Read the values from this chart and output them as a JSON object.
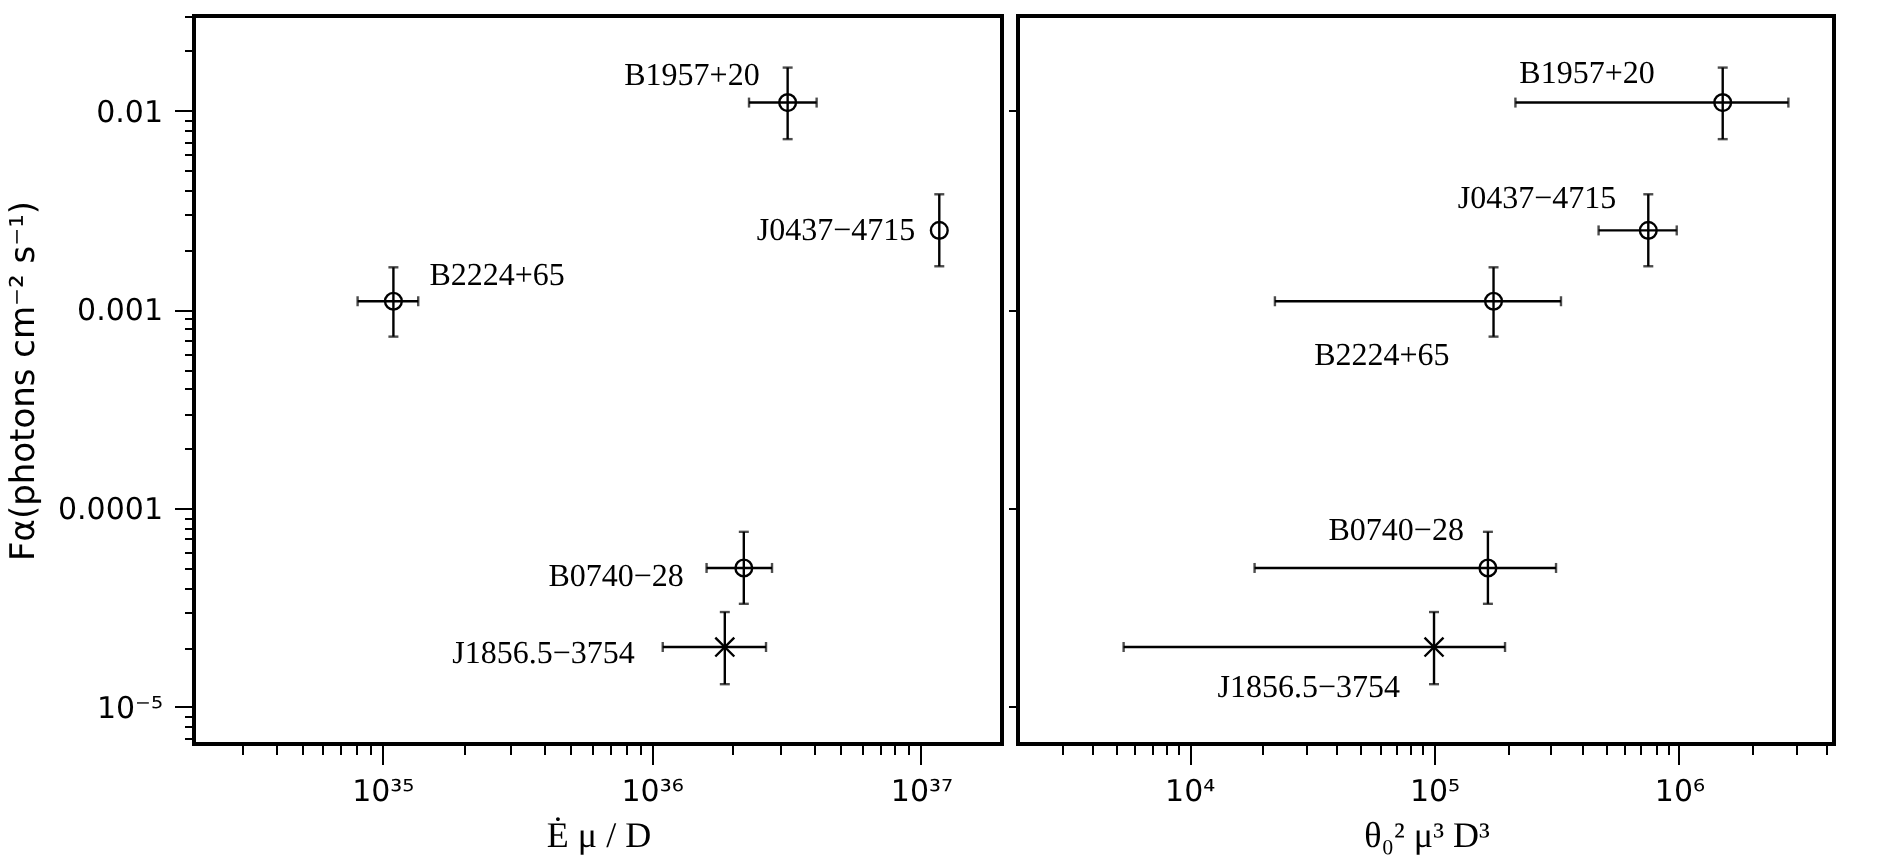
{
  "chart_data": [
    {
      "type": "scatter",
      "xlabel": "Ė μ / D",
      "ylabel": "Fα(photons cm⁻² s⁻¹)",
      "log": "xy",
      "grid": false,
      "legend": false,
      "marker": "circle",
      "xlim": [
        2e+34,
        2e+37
      ],
      "ylim": [
        6.5e-06,
        0.03
      ],
      "xticks": [
        {
          "value": 3e+34,
          "label": null
        },
        {
          "value": 4e+34,
          "label": null
        },
        {
          "value": 5e+34,
          "label": null
        },
        {
          "value": 6e+34,
          "label": null
        },
        {
          "value": 7e+34,
          "label": null
        },
        {
          "value": 8e+34,
          "label": null
        },
        {
          "value": 9e+34,
          "label": null
        },
        {
          "value": 1e+35,
          "label": "10³⁵"
        },
        {
          "value": 2e+35,
          "label": null
        },
        {
          "value": 3e+35,
          "label": null
        },
        {
          "value": 4e+35,
          "label": null
        },
        {
          "value": 5e+35,
          "label": null
        },
        {
          "value": 6e+35,
          "label": null
        },
        {
          "value": 7e+35,
          "label": null
        },
        {
          "value": 8e+35,
          "label": null
        },
        {
          "value": 9e+35,
          "label": null
        },
        {
          "value": 1e+36,
          "label": "10³⁶"
        },
        {
          "value": 2e+36,
          "label": null
        },
        {
          "value": 3e+36,
          "label": null
        },
        {
          "value": 4e+36,
          "label": null
        },
        {
          "value": 5e+36,
          "label": null
        },
        {
          "value": 6e+36,
          "label": null
        },
        {
          "value": 7e+36,
          "label": null
        },
        {
          "value": 8e+36,
          "label": null
        },
        {
          "value": 9e+36,
          "label": null
        },
        {
          "value": 1e+37,
          "label": "10³⁷"
        }
      ],
      "yticks": [
        {
          "value": 7e-06,
          "label": null
        },
        {
          "value": 8e-06,
          "label": null
        },
        {
          "value": 9e-06,
          "label": null
        },
        {
          "value": 1e-05,
          "label": "10⁻⁵"
        },
        {
          "value": 2e-05,
          "label": null
        },
        {
          "value": 3e-05,
          "label": null
        },
        {
          "value": 4e-05,
          "label": null
        },
        {
          "value": 5e-05,
          "label": null
        },
        {
          "value": 6e-05,
          "label": null
        },
        {
          "value": 7e-05,
          "label": null
        },
        {
          "value": 8e-05,
          "label": null
        },
        {
          "value": 9e-05,
          "label": null
        },
        0.0001,
        {
          "value": 0.0002,
          "label": null
        },
        {
          "value": 0.0003,
          "label": null
        },
        {
          "value": 0.0004,
          "label": null
        },
        {
          "value": 0.0005,
          "label": null
        },
        {
          "value": 0.0006,
          "label": null
        },
        {
          "value": 0.0007,
          "label": null
        },
        {
          "value": 0.0008,
          "label": null
        },
        {
          "value": 0.0009,
          "label": null
        },
        0.001,
        {
          "value": 0.002,
          "label": null
        },
        {
          "value": 0.003,
          "label": null
        },
        {
          "value": 0.004,
          "label": null
        },
        {
          "value": 0.005,
          "label": null
        },
        {
          "value": 0.006,
          "label": null
        },
        {
          "value": 0.007,
          "label": null
        },
        {
          "value": 0.008,
          "label": null
        },
        {
          "value": 0.009,
          "label": null
        },
        0.01,
        {
          "value": 0.02,
          "label": null
        },
        {
          "value": 0.03,
          "label": null
        }
      ],
      "series": [
        {
          "name": "B1957+20",
          "color": "#000000",
          "x": [
            3.2e+36
          ],
          "values": [
            0.011
          ],
          "errors": [
            [
              0.0072,
              0.0165
            ]
          ],
          "xerrors": [
            [
              2.3e+36,
              4.1e+36
            ]
          ]
        },
        {
          "name": "J0437−4715",
          "color": "#000000",
          "x": [
            1.17e+37
          ],
          "values": [
            0.0025
          ],
          "errors": [
            [
              0.00165,
              0.0038
            ]
          ]
        },
        {
          "name": "B2224+65",
          "color": "#000000",
          "x": [
            1.1e+35
          ],
          "values": [
            0.0011
          ],
          "errors": [
            [
              0.00073,
              0.00163
            ]
          ],
          "xerrors": [
            [
              8.1e+34,
              1.36e+35
            ]
          ]
        },
        {
          "name": "B0740−28",
          "color": "#000000",
          "x": [
            2.2e+36
          ],
          "values": [
            5e-05
          ],
          "errors": [
            [
              3.3e-05,
              7.6e-05
            ]
          ],
          "xerrors": [
            [
              1.6e+36,
              2.8e+36
            ]
          ]
        },
        {
          "name": "J1856.5−3754",
          "color": "#000000",
          "marker": "cross",
          "x": [
            1.87e+36
          ],
          "values": [
            2e-05
          ],
          "errors": [
            [
              1.3e-05,
              3e-05
            ]
          ],
          "xerrors": [
            [
              1.1e+36,
              2.66e+36
            ]
          ]
        }
      ]
    },
    {
      "type": "scatter",
      "xlabel": "θ₀² μ³ D³",
      "log": "xy",
      "grid": false,
      "legend": false,
      "marker": "circle",
      "tick_labels": "x",
      "xlim": [
        2000,
        4300000.0
      ],
      "ylim": [
        6.5e-06,
        0.03
      ],
      "xticks": [
        {
          "value": 3000,
          "label": null
        },
        {
          "value": 4000,
          "label": null
        },
        {
          "value": 5000,
          "label": null
        },
        {
          "value": 6000,
          "label": null
        },
        {
          "value": 7000,
          "label": null
        },
        {
          "value": 8000,
          "label": null
        },
        {
          "value": 9000,
          "label": null
        },
        {
          "value": 10000,
          "label": "10⁴"
        },
        {
          "value": 20000,
          "label": null
        },
        {
          "value": 30000,
          "label": null
        },
        {
          "value": 40000,
          "label": null
        },
        {
          "value": 50000,
          "label": null
        },
        {
          "value": 60000,
          "label": null
        },
        {
          "value": 70000,
          "label": null
        },
        {
          "value": 80000,
          "label": null
        },
        {
          "value": 90000,
          "label": null
        },
        {
          "value": 100000,
          "label": "10⁵"
        },
        {
          "value": 200000,
          "label": null
        },
        {
          "value": 300000,
          "label": null
        },
        {
          "value": 400000,
          "label": null
        },
        {
          "value": 500000,
          "label": null
        },
        {
          "value": 600000,
          "label": null
        },
        {
          "value": 700000,
          "label": null
        },
        {
          "value": 800000,
          "label": null
        },
        {
          "value": 900000,
          "label": null
        },
        {
          "value": 1000000,
          "label": "10⁶"
        },
        {
          "value": 2000000,
          "label": null
        },
        {
          "value": 3000000,
          "label": null
        },
        {
          "value": 4000000,
          "label": null
        }
      ],
      "yticks": [
        {
          "value": 1e-05,
          "label": null
        },
        {
          "value": 0.0001,
          "label": null
        },
        {
          "value": 0.001,
          "label": null
        },
        {
          "value": 0.01,
          "label": null
        }
      ],
      "series": [
        {
          "name": "B1957+20",
          "color": "#000000",
          "x": [
            1510000.0
          ],
          "values": [
            0.011
          ],
          "errors": [
            [
              0.0072,
              0.0165
            ]
          ],
          "xerrors": [
            [
              215000.0,
              2800000.0
            ]
          ]
        },
        {
          "name": "J0437−4715",
          "color": "#000000",
          "x": [
            750000.0
          ],
          "values": [
            0.0025
          ],
          "errors": [
            [
              0.00165,
              0.0038
            ]
          ],
          "xerrors": [
            [
              470000.0,
              980000.0
            ]
          ]
        },
        {
          "name": "B2224+65",
          "color": "#000000",
          "x": [
            175000.0
          ],
          "values": [
            0.0011
          ],
          "errors": [
            [
              0.00073,
              0.00163
            ]
          ],
          "xerrors": [
            [
              22400.0,
              330000.0
            ]
          ]
        },
        {
          "name": "B0740−28",
          "color": "#000000",
          "x": [
            166000.0
          ],
          "values": [
            5e-05
          ],
          "errors": [
            [
              3.3e-05,
              7.6e-05
            ]
          ],
          "xerrors": [
            [
              18500.0,
              315000.0
            ]
          ]
        },
        {
          "name": "J1856.5−3754",
          "color": "#000000",
          "marker": "cross",
          "x": [
            100000.0
          ],
          "values": [
            2e-05
          ],
          "errors": [
            [
              1.3e-05,
              3e-05
            ]
          ],
          "xerrors": [
            [
              5400.0,
              195000.0
            ]
          ]
        }
      ]
    }
  ]
}
